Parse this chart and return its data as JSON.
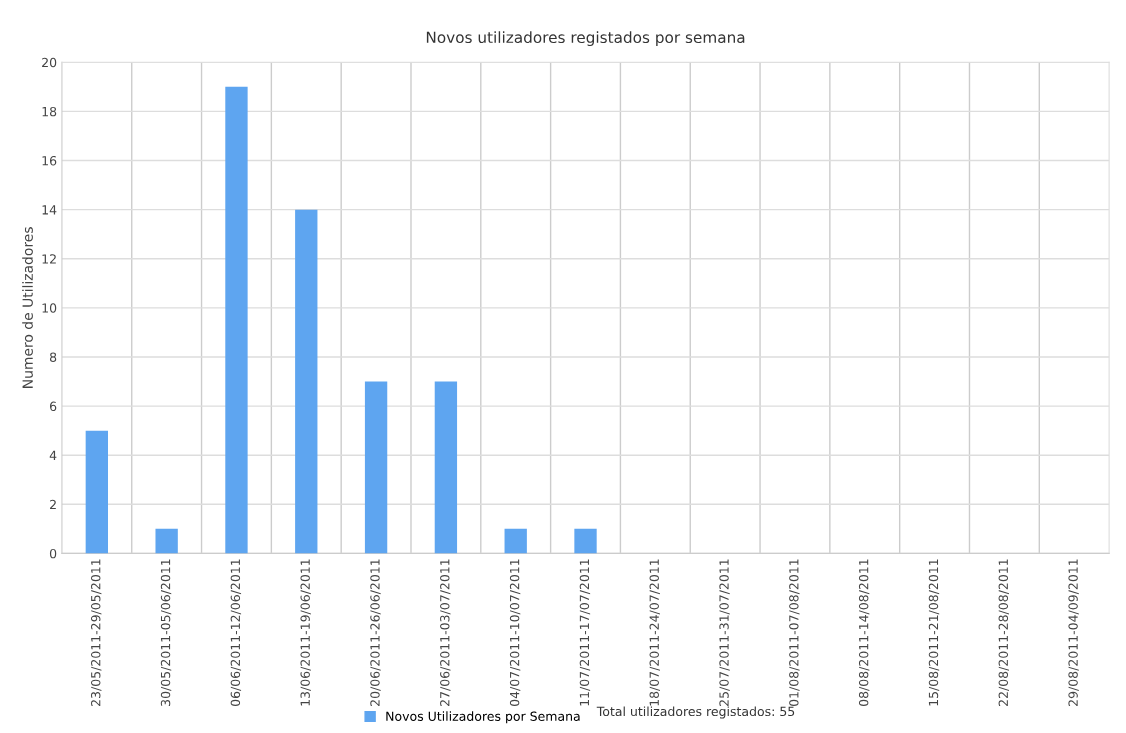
{
  "chart_data": {
    "type": "bar",
    "title": "Novos utilizadores registados por semana",
    "ylabel": "Numero de Utilizadores",
    "categories": [
      "23/05/2011-29/05/2011",
      "30/05/2011-05/06/2011",
      "06/06/2011-12/06/2011",
      "13/06/2011-19/06/2011",
      "20/06/2011-26/06/2011",
      "27/06/2011-03/07/2011",
      "04/07/2011-10/07/2011",
      "11/07/2011-17/07/2011",
      "18/07/2011-24/07/2011",
      "25/07/2011-31/07/2011",
      "01/08/2011-07/08/2011",
      "08/08/2011-14/08/2011",
      "15/08/2011-21/08/2011",
      "22/08/2011-28/08/2011",
      "29/08/2011-04/09/2011"
    ],
    "series": [
      {
        "name": "Novos Utilizadores por Semana",
        "color": "#5ea5f0",
        "values": [
          5,
          1,
          19,
          14,
          7,
          7,
          1,
          1,
          0,
          0,
          0,
          0,
          0,
          0,
          0
        ]
      }
    ],
    "ylim": [
      0,
      20
    ],
    "yticks": [
      0,
      2,
      4,
      6,
      8,
      10,
      12,
      14,
      16,
      18,
      20
    ],
    "grid": true,
    "legend": "bottom",
    "annotations": [
      "Total utilizadores registados: 55"
    ]
  }
}
